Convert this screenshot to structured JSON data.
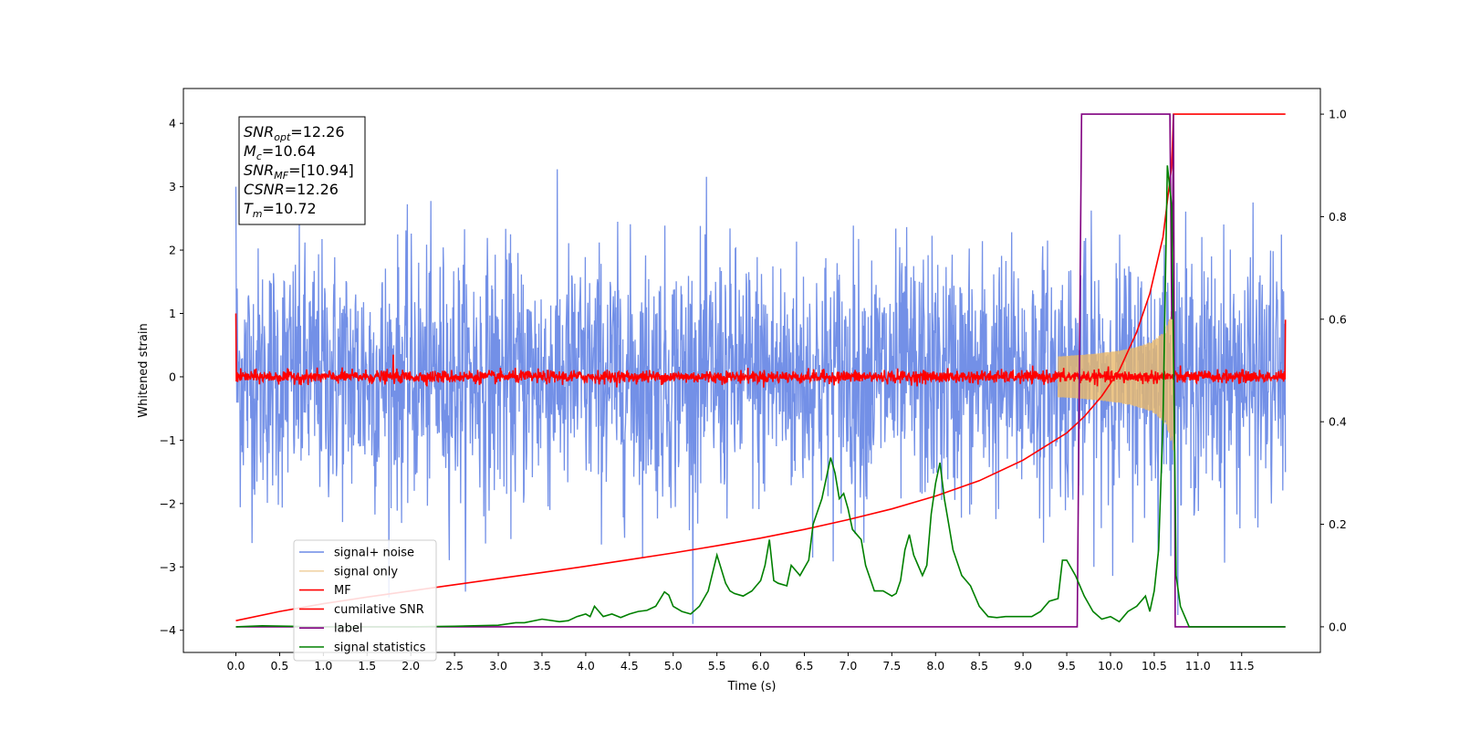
{
  "chart_data": {
    "type": "line",
    "xlabel": "Time (s)",
    "ylabel": "Whitened strain",
    "xlim": [
      -0.6,
      12.4
    ],
    "ylim": [
      -4.35,
      4.55
    ],
    "y2lim": [
      -0.05,
      1.05
    ],
    "xticks": [
      0.0,
      0.5,
      1.0,
      1.5,
      2.0,
      2.5,
      3.0,
      3.5,
      4.0,
      4.5,
      5.0,
      5.5,
      6.0,
      6.5,
      7.0,
      7.5,
      8.0,
      8.5,
      9.0,
      9.5,
      10.0,
      10.5,
      11.0,
      11.5
    ],
    "xtick_labels": [
      "0.0",
      "0.5",
      "1.0",
      "1.5",
      "2.0",
      "2.5",
      "3.0",
      "3.5",
      "4.0",
      "4.5",
      "5.0",
      "5.5",
      "6.0",
      "6.5",
      "7.0",
      "7.5",
      "8.0",
      "8.5",
      "9.0",
      "9.5",
      "10.0",
      "10.5",
      "11.0",
      "11.5"
    ],
    "yticks": [
      -4,
      -3,
      -2,
      -1,
      0,
      1,
      2,
      3,
      4
    ],
    "ytick_labels": [
      "−4",
      "−3",
      "−2",
      "−1",
      "0",
      "1",
      "2",
      "3",
      "4"
    ],
    "y2ticks": [
      0.0,
      0.2,
      0.4,
      0.6,
      0.8,
      1.0
    ],
    "y2tick_labels": [
      "0.0",
      "0.2",
      "0.4",
      "0.6",
      "0.8",
      "1.0"
    ],
    "grid": false,
    "legend_position": "lower-left",
    "annotation": {
      "lines": [
        {
          "base": "SNR",
          "sub": "opt",
          "value": "=12.26"
        },
        {
          "base": "M",
          "sub": "c",
          "value": "=10.64"
        },
        {
          "base": "SNR",
          "sub": "MF",
          "value": "=[10.94]"
        },
        {
          "base": "CSNR",
          "sub": "",
          "value": "=12.26"
        },
        {
          "base": "T",
          "sub": "m",
          "value": "=10.72"
        }
      ]
    },
    "series": [
      {
        "name": "signal+ noise",
        "axis": "left",
        "color": "#6b8ae6",
        "kind": "noise",
        "t_range": [
          0.0,
          12.0
        ],
        "rms": 1.0,
        "extent": [
          -3.9,
          3.55
        ]
      },
      {
        "name": "signal only",
        "axis": "left",
        "color": "#e8b86a",
        "kind": "chirp",
        "t_start": 9.4,
        "t_merger": 10.72,
        "peak_amplitude": 1.4
      },
      {
        "name": "MF",
        "axis": "left",
        "color": "#ff0000",
        "kind": "noise",
        "t_range": [
          0.0,
          12.0
        ],
        "rms": 0.05,
        "endpoints": [
          [
            0.0,
            1.0
          ],
          [
            12.0,
            0.9
          ]
        ]
      },
      {
        "name": "cumilative SNR",
        "axis": "right",
        "color": "#ff0000",
        "x": [
          0.0,
          0.5,
          1.0,
          1.5,
          2.0,
          2.5,
          3.0,
          3.5,
          4.0,
          4.5,
          5.0,
          5.5,
          6.0,
          6.5,
          7.0,
          7.5,
          8.0,
          8.5,
          9.0,
          9.5,
          9.7,
          9.9,
          10.1,
          10.3,
          10.45,
          10.6,
          10.7,
          10.72,
          10.8,
          11.0,
          11.5,
          12.0
        ],
        "y": [
          0.012,
          0.03,
          0.045,
          0.058,
          0.07,
          0.082,
          0.094,
          0.106,
          0.118,
          0.131,
          0.144,
          0.158,
          0.173,
          0.19,
          0.209,
          0.23,
          0.255,
          0.285,
          0.325,
          0.378,
          0.41,
          0.45,
          0.5,
          0.575,
          0.65,
          0.76,
          0.9,
          1.0,
          1.0,
          1.0,
          1.0,
          1.0
        ]
      },
      {
        "name": "label",
        "axis": "right",
        "color": "#800080",
        "x": [
          0.0,
          9.62,
          9.67,
          10.68,
          10.7,
          10.72,
          10.74,
          12.0
        ],
        "y": [
          0.0,
          0.0,
          1.0,
          1.0,
          0.6,
          1.0,
          0.0,
          0.0
        ]
      },
      {
        "name": "signal statistics",
        "axis": "right",
        "color": "#008000",
        "x": [
          0.0,
          0.3,
          1.0,
          2.0,
          2.5,
          3.0,
          3.2,
          3.3,
          3.5,
          3.7,
          3.8,
          3.9,
          4.0,
          4.05,
          4.1,
          4.2,
          4.3,
          4.4,
          4.5,
          4.6,
          4.7,
          4.8,
          4.9,
          4.95,
          5.0,
          5.1,
          5.2,
          5.3,
          5.4,
          5.5,
          5.6,
          5.65,
          5.7,
          5.8,
          5.9,
          6.0,
          6.05,
          6.1,
          6.15,
          6.2,
          6.3,
          6.35,
          6.45,
          6.55,
          6.6,
          6.7,
          6.8,
          6.85,
          6.9,
          6.95,
          7.0,
          7.05,
          7.1,
          7.15,
          7.2,
          7.3,
          7.4,
          7.5,
          7.55,
          7.6,
          7.65,
          7.7,
          7.75,
          7.8,
          7.85,
          7.9,
          7.95,
          8.0,
          8.05,
          8.1,
          8.15,
          8.2,
          8.3,
          8.4,
          8.5,
          8.6,
          8.7,
          8.8,
          8.9,
          9.0,
          9.1,
          9.2,
          9.3,
          9.4,
          9.45,
          9.5,
          9.6,
          9.7,
          9.8,
          9.9,
          10.0,
          10.1,
          10.2,
          10.3,
          10.4,
          10.45,
          10.5,
          10.55,
          10.6,
          10.65,
          10.7,
          10.75,
          10.8,
          10.9,
          11.0,
          12.0
        ],
        "y": [
          0.0,
          0.002,
          0.0,
          0.0,
          0.001,
          0.003,
          0.008,
          0.008,
          0.015,
          0.01,
          0.012,
          0.02,
          0.025,
          0.02,
          0.04,
          0.02,
          0.025,
          0.018,
          0.025,
          0.03,
          0.032,
          0.04,
          0.068,
          0.062,
          0.04,
          0.03,
          0.025,
          0.04,
          0.07,
          0.14,
          0.085,
          0.07,
          0.065,
          0.06,
          0.07,
          0.09,
          0.12,
          0.17,
          0.09,
          0.085,
          0.08,
          0.12,
          0.1,
          0.13,
          0.2,
          0.25,
          0.33,
          0.3,
          0.25,
          0.26,
          0.23,
          0.19,
          0.18,
          0.17,
          0.12,
          0.07,
          0.07,
          0.06,
          0.065,
          0.09,
          0.15,
          0.18,
          0.14,
          0.12,
          0.1,
          0.12,
          0.22,
          0.28,
          0.32,
          0.25,
          0.2,
          0.15,
          0.1,
          0.08,
          0.04,
          0.02,
          0.018,
          0.02,
          0.02,
          0.02,
          0.02,
          0.03,
          0.05,
          0.055,
          0.13,
          0.13,
          0.1,
          0.06,
          0.03,
          0.015,
          0.02,
          0.01,
          0.03,
          0.04,
          0.06,
          0.03,
          0.07,
          0.15,
          0.4,
          0.9,
          0.82,
          0.1,
          0.04,
          0.0,
          0.0,
          0.0
        ]
      }
    ]
  }
}
